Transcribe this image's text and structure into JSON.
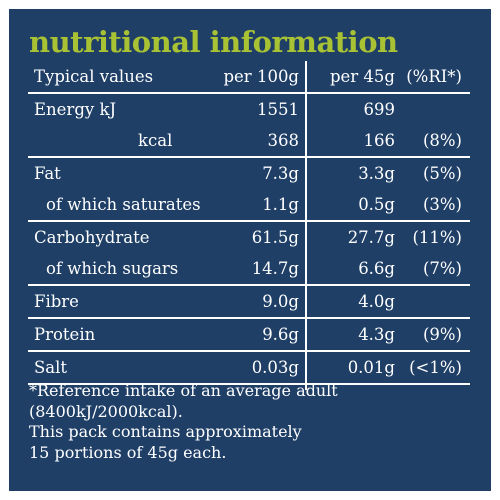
{
  "title": "nutritional information",
  "header": {
    "label": "Typical values",
    "per100": "per 100g",
    "per45": "per 45g",
    "ri": "(%RI*)"
  },
  "groups": [
    {
      "rows": [
        {
          "label": "Energy kJ",
          "per100": "1551",
          "per45": "699",
          "ri": ""
        },
        {
          "label": "kcal",
          "per100": "368",
          "per45": "166",
          "ri": "(8%)"
        }
      ]
    },
    {
      "rows": [
        {
          "label": "Fat",
          "per100": "7.3g",
          "per45": "3.3g",
          "ri": "(5%)"
        },
        {
          "label": "of which saturates",
          "per100": "1.1g",
          "per45": "0.5g",
          "ri": "(3%)"
        }
      ]
    },
    {
      "rows": [
        {
          "label": "Carbohydrate",
          "per100": "61.5g",
          "per45": "27.7g",
          "ri": "(11%)"
        },
        {
          "label": "of which sugars",
          "per100": "14.7g",
          "per45": "6.6g",
          "ri": "(7%)"
        }
      ]
    },
    {
      "rows": [
        {
          "label": "Fibre",
          "per100": "9.0g",
          "per45": "4.0g",
          "ri": ""
        }
      ]
    },
    {
      "rows": [
        {
          "label": "Protein",
          "per100": "9.6g",
          "per45": "4.3g",
          "ri": "(9%)"
        }
      ]
    },
    {
      "rows": [
        {
          "label": "Salt",
          "per100": "0.03g",
          "per45": "0.01g",
          "ri": "(<1%)"
        }
      ]
    }
  ],
  "footnote": {
    "line1": "*Reference intake of an average adult",
    "line2": "(8400kJ/2000kcal).",
    "line3": "This pack contains approximately",
    "line4": "15 portions of 45g each."
  },
  "colors": {
    "background": "#1f3f67",
    "title": "#a8c233",
    "text": "#ffffff"
  }
}
